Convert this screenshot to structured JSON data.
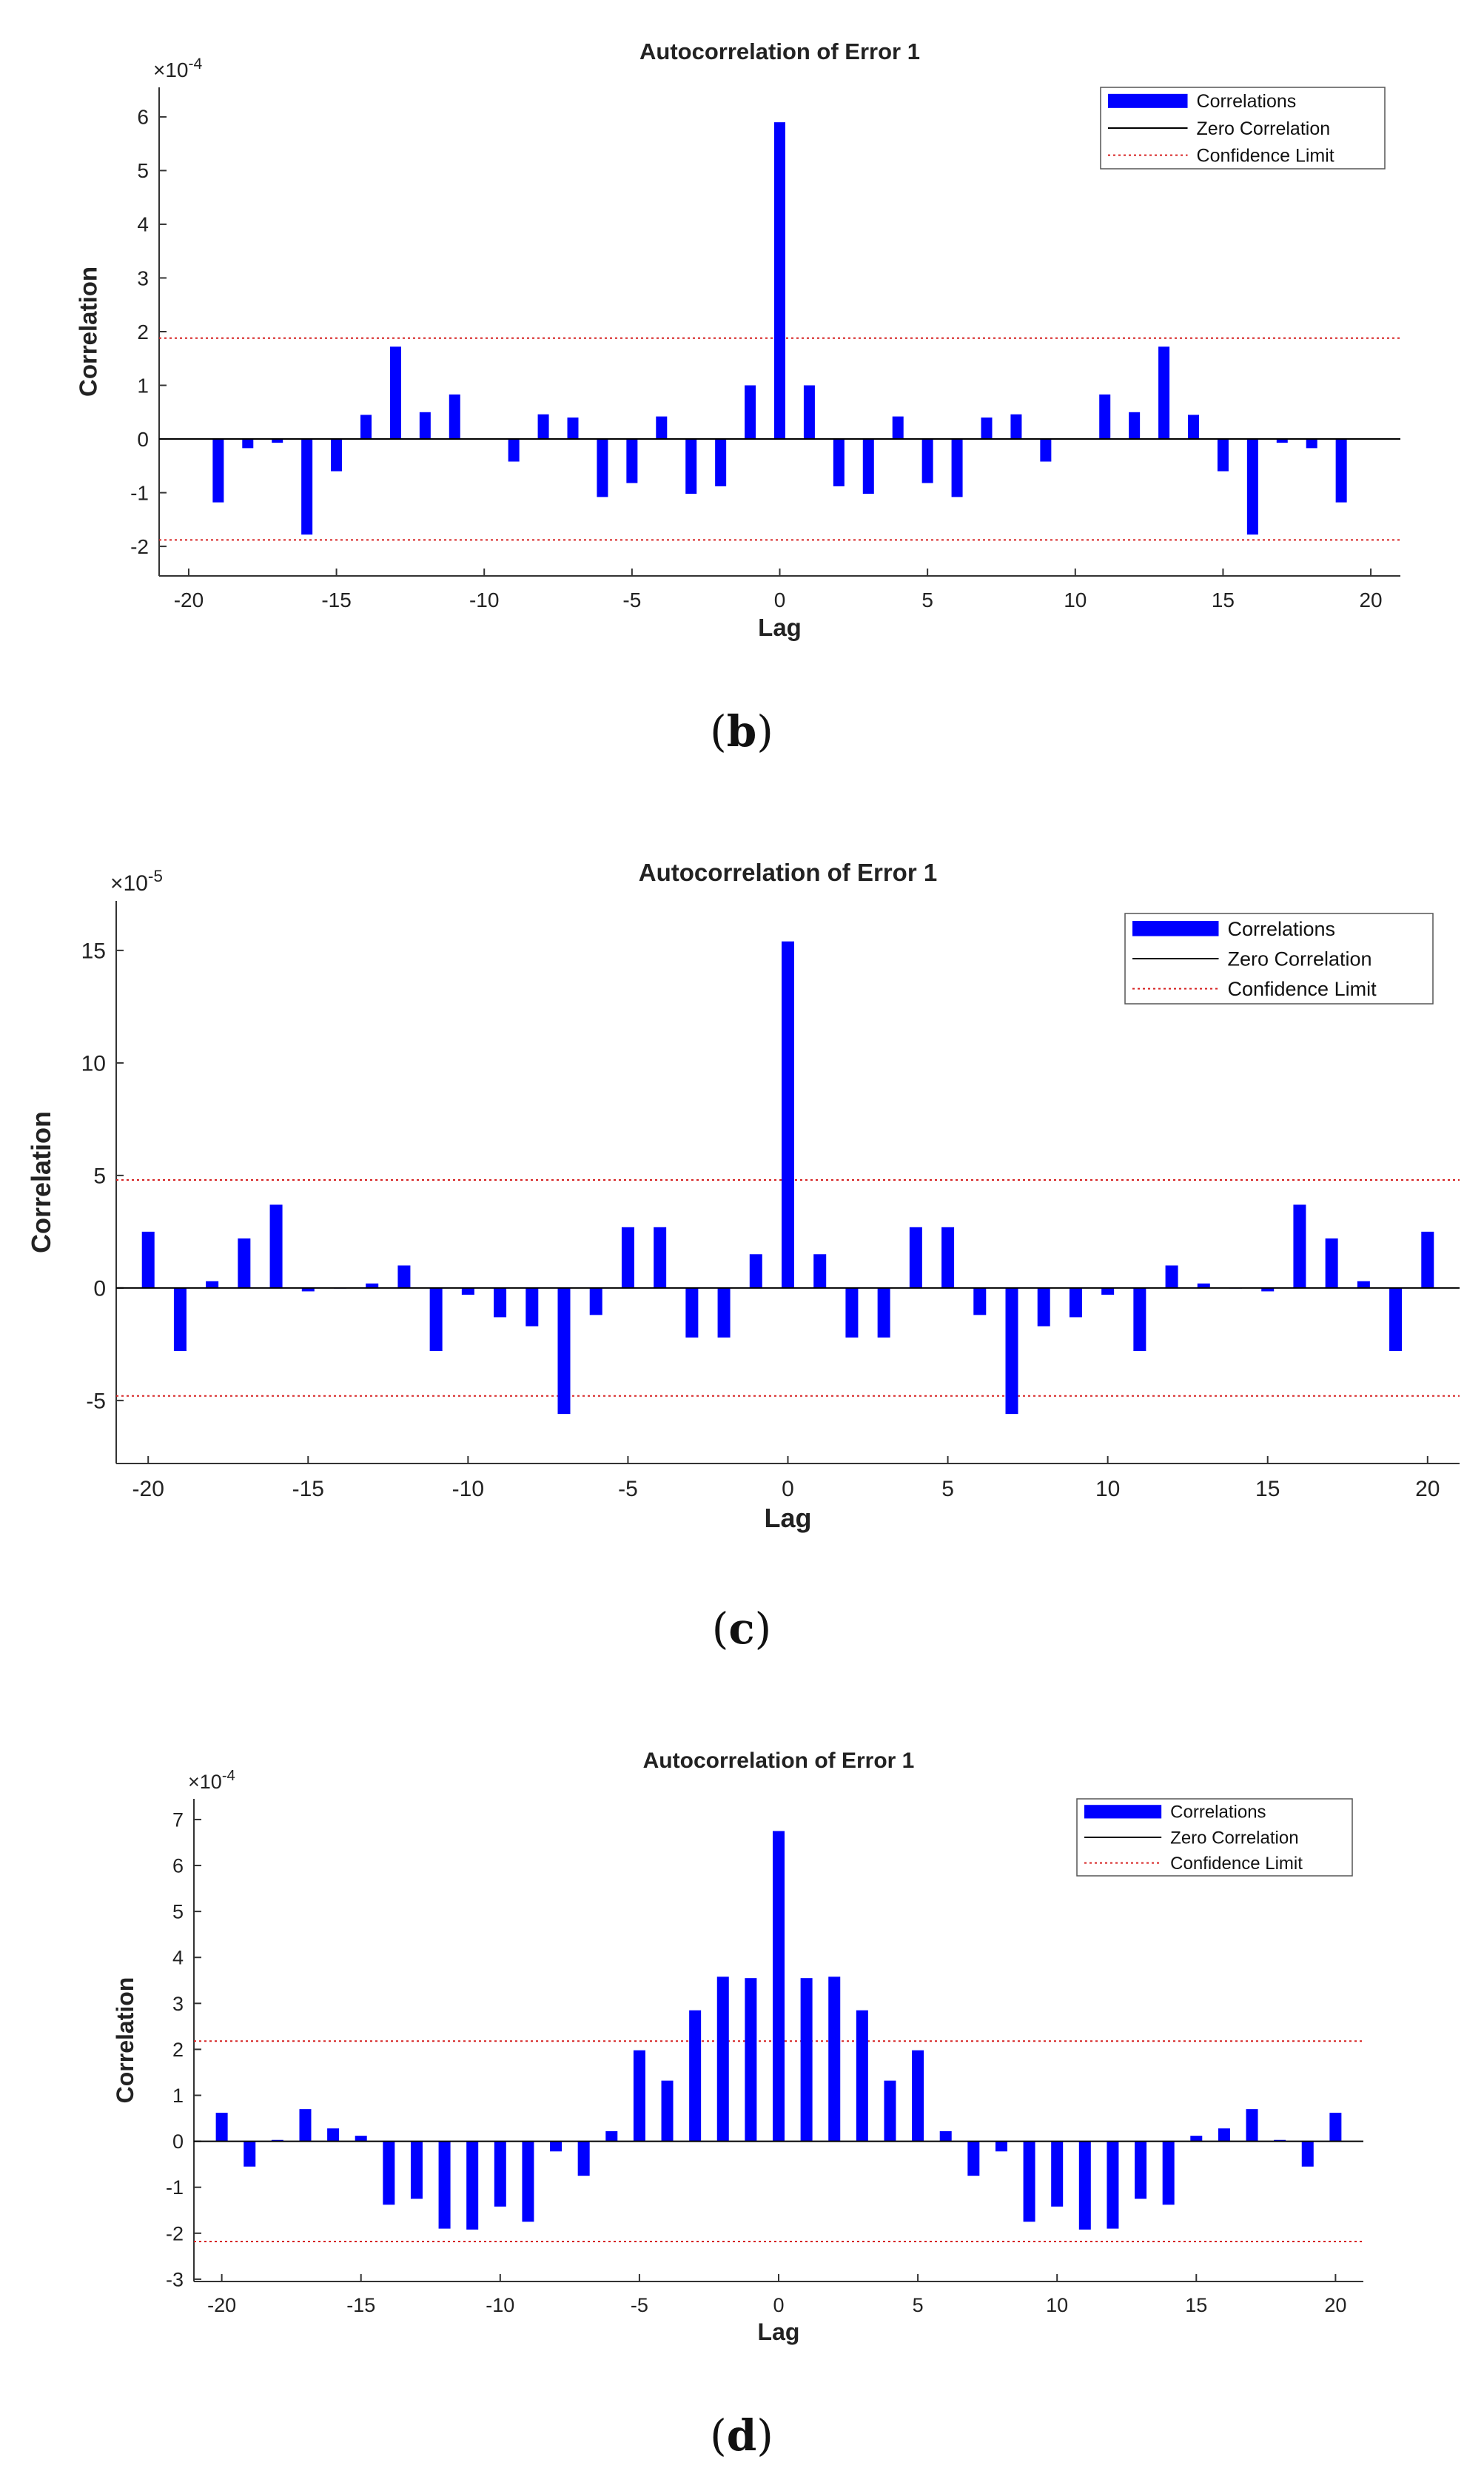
{
  "chart_data": [
    {
      "type": "bar",
      "caption": "b",
      "title": "Autocorrelation of Error 1",
      "xlabel": "Lag",
      "ylabel": "Correlation",
      "exponent_base": "×10",
      "exponent_power": "-4",
      "xlim": [
        -21,
        21
      ],
      "ylim": [
        -2.55,
        6.55
      ],
      "xticks": [
        -20,
        -15,
        -10,
        -5,
        0,
        5,
        10,
        15,
        20
      ],
      "yticks": [
        -2,
        -1,
        0,
        1,
        2,
        3,
        4,
        5,
        6
      ],
      "confidence_limit": 1.88,
      "legend": [
        "Correlations",
        "Zero Correlation",
        "Confidence Limit"
      ],
      "legend_position": "top-right",
      "lags": [
        -19,
        -18,
        -17,
        -16,
        -15,
        -14,
        -13,
        -12,
        -11,
        -10,
        -9,
        -8,
        -7,
        -6,
        -5,
        -4,
        -3,
        -2,
        -1,
        0,
        1,
        2,
        3,
        4,
        5,
        6,
        7,
        8,
        9,
        10,
        11,
        12,
        13,
        14,
        15,
        16,
        17,
        18,
        19
      ],
      "values": [
        -1.18,
        -0.17,
        -0.07,
        -1.78,
        -0.6,
        0.45,
        1.72,
        0.5,
        0.83,
        0,
        -0.42,
        0.46,
        0.4,
        -1.08,
        -0.82,
        0.42,
        -1.02,
        -0.88,
        1.0,
        5.9,
        1.0,
        -0.88,
        -1.02,
        0.42,
        -0.82,
        -1.08,
        0.4,
        0.46,
        -0.42,
        0,
        0.83,
        0.5,
        1.72,
        0.45,
        -0.6,
        -1.78,
        -0.07,
        -0.17,
        -1.18
      ]
    },
    {
      "type": "bar",
      "caption": "c",
      "title": "Autocorrelation of Error 1",
      "xlabel": "Lag",
      "ylabel": "Correlation",
      "exponent_base": "×10",
      "exponent_power": "-5",
      "xlim": [
        -21,
        21
      ],
      "ylim": [
        -7.8,
        17.2
      ],
      "xticks": [
        -20,
        -15,
        -10,
        -5,
        0,
        5,
        10,
        15,
        20
      ],
      "yticks": [
        -5,
        0,
        5,
        10,
        15
      ],
      "confidence_limit": 4.8,
      "legend": [
        "Correlations",
        "Zero Correlation",
        "Confidence Limit"
      ],
      "legend_position": "top-right",
      "lags": [
        -20,
        -19,
        -18,
        -17,
        -16,
        -15,
        -14,
        -13,
        -12,
        -11,
        -10,
        -9,
        -8,
        -7,
        -6,
        -5,
        -4,
        -3,
        -2,
        -1,
        0,
        1,
        2,
        3,
        4,
        5,
        6,
        7,
        8,
        9,
        10,
        11,
        12,
        13,
        14,
        15,
        16,
        17,
        18,
        19,
        20
      ],
      "values": [
        2.5,
        -2.8,
        0.3,
        2.2,
        3.7,
        -0.15,
        0,
        0.2,
        1.0,
        -2.8,
        -0.3,
        -1.3,
        -1.7,
        -5.6,
        -1.2,
        2.7,
        2.7,
        -2.2,
        -2.2,
        1.5,
        15.4,
        1.5,
        -2.2,
        -2.2,
        2.7,
        2.7,
        -1.2,
        -5.6,
        -1.7,
        -1.3,
        -0.3,
        -2.8,
        1.0,
        0.2,
        0,
        -0.15,
        3.7,
        2.2,
        0.3,
        -2.8,
        2.5
      ]
    },
    {
      "type": "bar",
      "caption": "d",
      "title": "Autocorrelation of Error 1",
      "xlabel": "Lag",
      "ylabel": "Correlation",
      "exponent_base": "×10",
      "exponent_power": "-4",
      "xlim": [
        -21,
        21
      ],
      "ylim": [
        -3.05,
        7.45
      ],
      "xticks": [
        -20,
        -15,
        -10,
        -5,
        0,
        5,
        10,
        15,
        20
      ],
      "yticks": [
        -3,
        -2,
        -1,
        0,
        1,
        2,
        3,
        4,
        5,
        6,
        7
      ],
      "confidence_limit": 2.18,
      "legend": [
        "Correlations",
        "Zero Correlation",
        "Confidence Limit"
      ],
      "legend_position": "top-right",
      "lags": [
        -20,
        -19,
        -18,
        -17,
        -16,
        -15,
        -14,
        -13,
        -12,
        -11,
        -10,
        -9,
        -8,
        -7,
        -6,
        -5,
        -4,
        -3,
        -2,
        -1,
        0,
        1,
        2,
        3,
        4,
        5,
        6,
        7,
        8,
        9,
        10,
        11,
        12,
        13,
        14,
        15,
        16,
        17,
        18,
        19,
        20
      ],
      "values": [
        0.62,
        -0.55,
        0.03,
        0.7,
        0.28,
        0.12,
        -1.38,
        -1.25,
        -1.9,
        -1.92,
        -1.42,
        -1.75,
        -0.22,
        -0.75,
        0.22,
        1.98,
        1.32,
        2.85,
        3.58,
        3.55,
        6.75,
        3.55,
        3.58,
        2.85,
        1.32,
        1.98,
        0.22,
        -0.75,
        -0.22,
        -1.75,
        -1.42,
        -1.92,
        -1.9,
        -1.25,
        -1.38,
        0.12,
        0.28,
        0.7,
        0.03,
        -0.55,
        0.62
      ]
    }
  ],
  "colors": {
    "bars": "#0000ff",
    "zero_line": "#000000",
    "confidence": "#d62020",
    "axis": "#333333"
  }
}
